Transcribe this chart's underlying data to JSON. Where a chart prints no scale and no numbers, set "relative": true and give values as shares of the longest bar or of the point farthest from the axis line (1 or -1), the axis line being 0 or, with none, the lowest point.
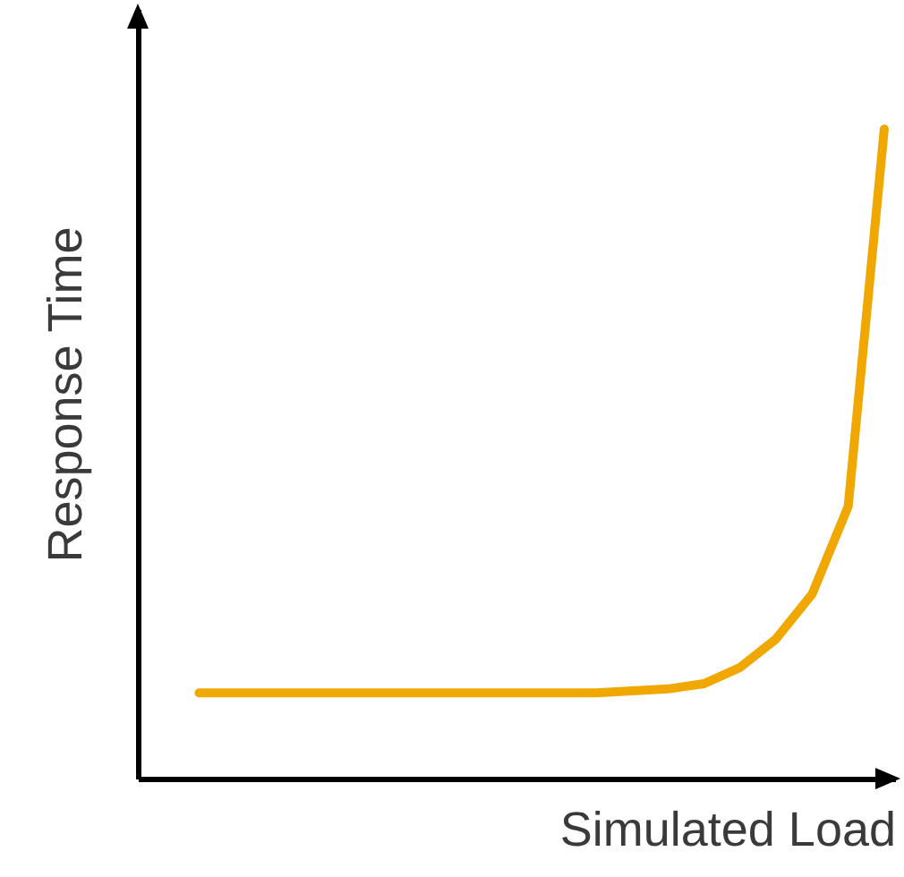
{
  "chart_data": {
    "type": "line",
    "xlabel": "Simulated Load",
    "ylabel": "Response Time",
    "relative": true,
    "grid": false,
    "marker": "none",
    "line_style": "solid",
    "categories": [
      null,
      null,
      null,
      null,
      null,
      null,
      null,
      null,
      null,
      null,
      null,
      null,
      null,
      null,
      null,
      null,
      null,
      null,
      null,
      null
    ],
    "series": [
      {
        "color": "#f0a800",
        "values": [
          0.132,
          0.132,
          0.132,
          0.132,
          0.132,
          0.132,
          0.132,
          0.132,
          0.132,
          0.132,
          0.132,
          0.132,
          0.135,
          0.138,
          0.146,
          0.171,
          0.215,
          0.284,
          0.419,
          1
        ]
      }
    ]
  }
}
